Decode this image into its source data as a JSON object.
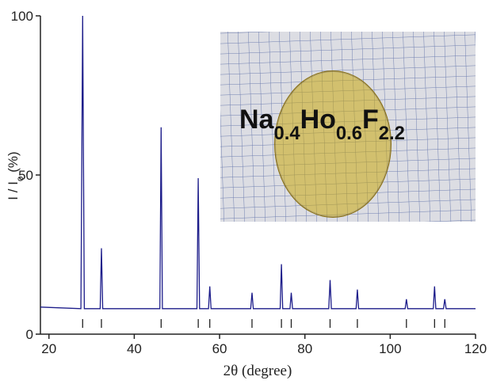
{
  "chart_data": {
    "type": "line",
    "x_label": "2θ (degree)",
    "y_label": [
      "I / I",
      "o",
      " (%)"
    ],
    "inset_label": [
      "Na",
      "0.4",
      "Ho",
      "0.6",
      "F",
      "2.2"
    ],
    "x": [
      18,
      27.5,
      27.9,
      28.3,
      32.0,
      32.3,
      32.6,
      46.0,
      46.3,
      46.6,
      54.7,
      55.0,
      55.3,
      57.4,
      57.7,
      58.0,
      67.3,
      67.6,
      67.9,
      74.2,
      74.5,
      74.8,
      76.5,
      76.8,
      77.1,
      85.6,
      85.9,
      86.2,
      92.0,
      92.3,
      92.6,
      103.5,
      103.8,
      104.1,
      110.1,
      110.4,
      110.7,
      112.5,
      112.8,
      113.1,
      120
    ],
    "values": [
      8.5,
      8,
      100,
      8,
      8,
      27,
      8,
      8,
      65,
      8,
      8,
      49,
      8,
      8,
      15,
      8,
      8,
      13,
      8,
      8,
      22,
      8,
      8,
      13,
      8,
      8,
      17,
      8,
      8,
      14,
      8,
      8,
      11,
      8,
      8,
      15,
      8,
      8,
      11,
      8,
      8
    ],
    "color": "#1c1c8a",
    "reference_positions": [
      27.9,
      32.3,
      46.3,
      55.0,
      57.7,
      67.6,
      74.5,
      76.8,
      85.9,
      92.3,
      103.8,
      110.4,
      112.8
    ],
    "xlim": [
      18,
      120
    ],
    "ylim": [
      0,
      100
    ],
    "xticks": [
      20,
      40,
      60,
      80,
      100,
      120
    ],
    "yticks": [
      0,
      50,
      100
    ]
  }
}
